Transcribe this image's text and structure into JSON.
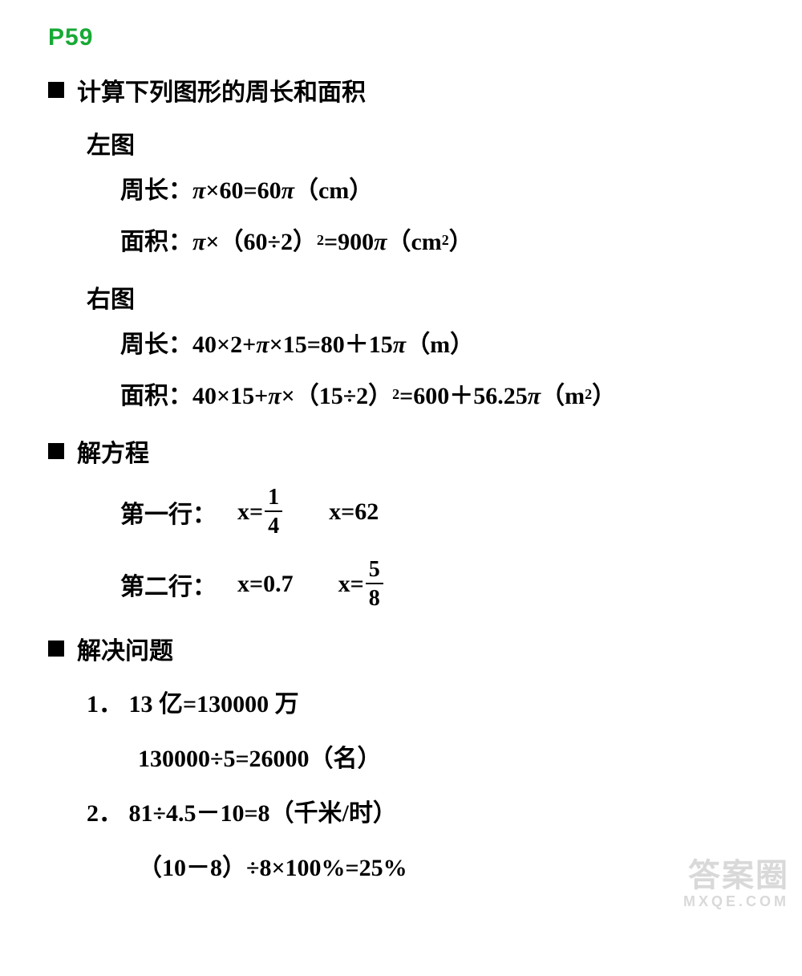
{
  "colors": {
    "page_number": "#18a935",
    "text": "#000000",
    "watermark": "#d9d9d9",
    "background": "#ffffff"
  },
  "page_number": "P59",
  "sections": {
    "calc": {
      "title": "计算下列图形的周长和面积",
      "left": {
        "label": "左图",
        "perimeter_label": "周长：",
        "perimeter_expr_a": "π×60=60π",
        "perimeter_unit": "（cm）",
        "area_label": "面积：",
        "area_expr_a": "π×",
        "area_expr_b": "（60÷2）",
        "area_exp": "2",
        "area_expr_c": "=900π",
        "area_unit_a": "（cm",
        "area_unit_exp": "2",
        "area_unit_b": "）"
      },
      "right": {
        "label": "右图",
        "perimeter_label": "周长：",
        "perimeter_expr_a": "40×2+π×15=80＋15π",
        "perimeter_unit": "（m）",
        "area_label": "面积：",
        "area_expr_a": "40×15+π×",
        "area_expr_b": "（15÷2）",
        "area_exp": "2",
        "area_expr_c": "=600＋56.25π",
        "area_unit_a": "（m",
        "area_unit_exp": "2",
        "area_unit_b": "）"
      }
    },
    "solve_eq": {
      "title": "解方程",
      "row1": {
        "label": "第一行：",
        "eq1_lhs": "x=",
        "eq1_frac_num": "1",
        "eq1_frac_den": "4",
        "eq2": "x=62"
      },
      "row2": {
        "label": "第二行：",
        "eq1": "x=0.7",
        "eq2_lhs": "x=",
        "eq2_frac_num": "5",
        "eq2_frac_den": "8"
      }
    },
    "solve_prob": {
      "title": "解决问题",
      "p1": {
        "num": "1．",
        "line1": "13 亿=130000 万",
        "line2": "130000÷5=26000（名）"
      },
      "p2": {
        "num": "2．",
        "line1": "81÷4.5－10=8（千米/时）",
        "line2": "（10－8）÷8×100%=25%"
      }
    }
  },
  "watermark": {
    "big": "答案圈",
    "small": "MXQE.COM"
  }
}
